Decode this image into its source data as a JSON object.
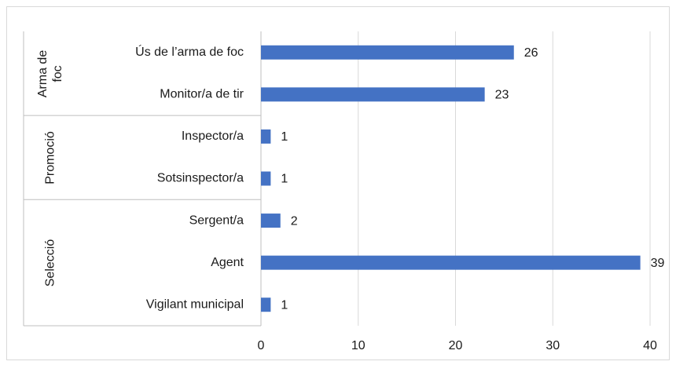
{
  "chart_data": {
    "type": "bar",
    "orientation": "horizontal",
    "color": "#4472c4",
    "groups": [
      {
        "name": "Arma de foc",
        "categories": [
          "Ús de l’arma de foc",
          "Monitor/a de tir"
        ],
        "values": [
          26,
          23
        ]
      },
      {
        "name": "Promoció",
        "categories": [
          "Inspector/a",
          "Sotsinspector/a"
        ],
        "values": [
          1,
          1
        ]
      },
      {
        "name": "Selecció",
        "categories": [
          "Sergent/a",
          "Agent",
          "Vigilant municipal"
        ],
        "values": [
          2,
          39,
          1
        ]
      }
    ],
    "xlim": [
      0,
      40
    ],
    "xticks": [
      0,
      10,
      20,
      30,
      40
    ],
    "grid": true
  }
}
